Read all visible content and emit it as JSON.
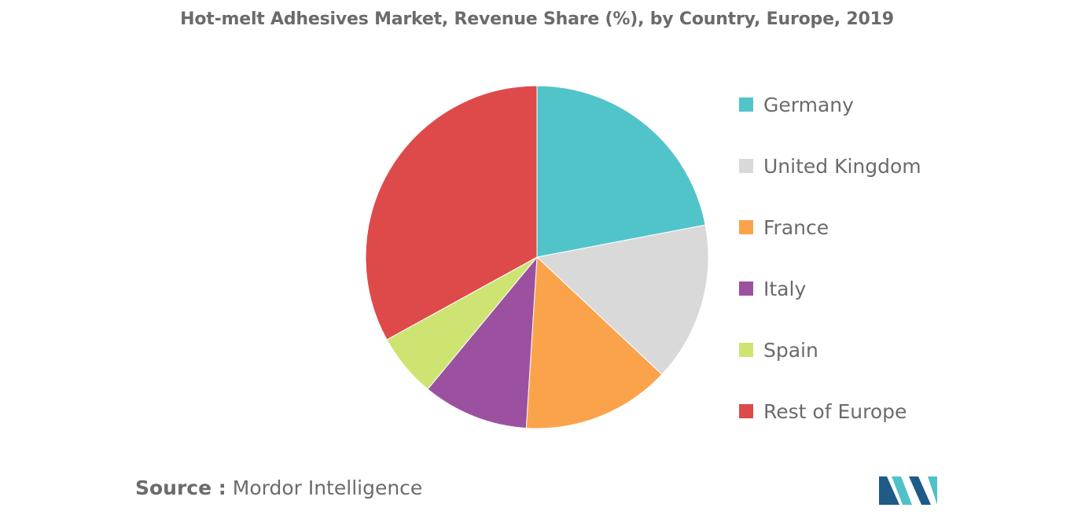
{
  "chart_data": {
    "type": "pie",
    "title": "Hot-melt Adhesives Market, Revenue Share (%), by Country, Europe, 2019",
    "categories": [
      "Germany",
      "United Kingdom",
      "France",
      "Italy",
      "Spain",
      "Rest of Europe"
    ],
    "values": [
      22,
      15,
      14,
      10,
      6,
      33
    ],
    "colors": [
      "#51c4ca",
      "#d9d9d9",
      "#fba34b",
      "#9c51a0",
      "#cde472",
      "#de4a4a"
    ],
    "start_angle_deg": 0,
    "direction": "clockwise",
    "legend_position": "right"
  },
  "source": {
    "label": "Source :",
    "text": "Mordor Intelligence"
  },
  "logo": {
    "icon": "mordor-intelligence-logo-icon",
    "colors": [
      "#1f5b87",
      "#4fc1c9"
    ]
  }
}
